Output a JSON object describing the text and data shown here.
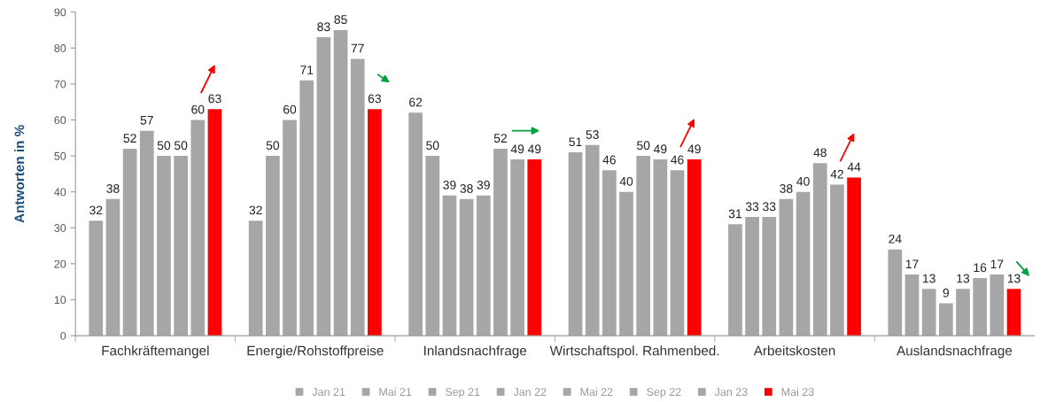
{
  "chart_data": {
    "type": "bar",
    "ylabel": "Antworten in %",
    "categories": [
      "Fachkräftemangel",
      "Energie/Rohstoffpreise",
      "Inlandsnachfrage",
      "Wirtschaftspol. Rahmenbed.",
      "Arbeitskosten",
      "Auslandsnachfrage"
    ],
    "series": [
      {
        "name": "Jan 21",
        "color": "#a6a6a6",
        "values": [
          32,
          32,
          62,
          51,
          31,
          24
        ]
      },
      {
        "name": "Mai 21",
        "color": "#a6a6a6",
        "values": [
          38,
          50,
          50,
          53,
          33,
          17
        ]
      },
      {
        "name": "Sep 21",
        "color": "#a6a6a6",
        "values": [
          52,
          60,
          39,
          46,
          33,
          13
        ]
      },
      {
        "name": "Jan 22",
        "color": "#a6a6a6",
        "values": [
          57,
          71,
          38,
          40,
          38,
          9
        ]
      },
      {
        "name": "Mai 22",
        "color": "#a6a6a6",
        "values": [
          50,
          83,
          39,
          50,
          40,
          13
        ]
      },
      {
        "name": "Sep 22",
        "color": "#a6a6a6",
        "values": [
          50,
          85,
          52,
          49,
          48,
          16
        ]
      },
      {
        "name": "Jan 23",
        "color": "#a6a6a6",
        "values": [
          60,
          77,
          49,
          46,
          42,
          17
        ]
      },
      {
        "name": "Mai 23",
        "color": "#ff0000",
        "values": [
          63,
          63,
          49,
          49,
          44,
          13
        ]
      }
    ],
    "ylim": [
      0,
      90
    ],
    "yticks": [
      0,
      10,
      20,
      30,
      40,
      50,
      60,
      70,
      80,
      90
    ],
    "data_labels": true,
    "grid": false,
    "legend": "bottom"
  }
}
